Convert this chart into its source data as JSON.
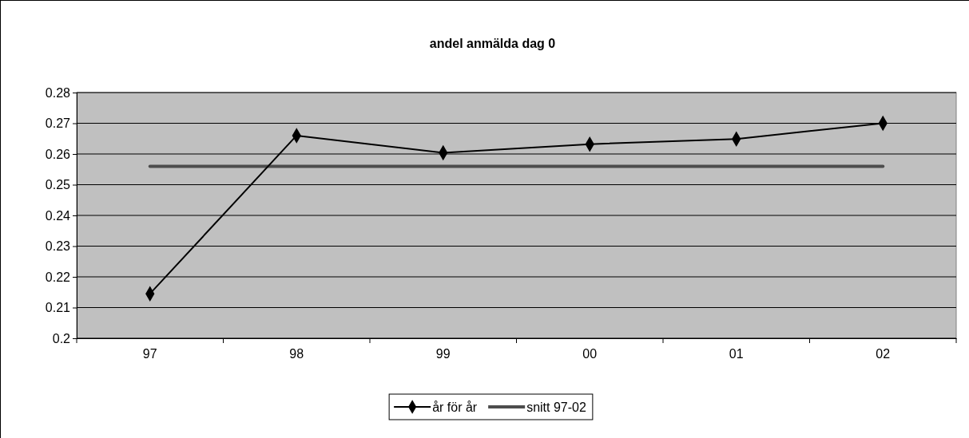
{
  "chart_data": {
    "type": "line",
    "title": "andel anmälda dag 0",
    "categories": [
      "97",
      "98",
      "99",
      "00",
      "01",
      "02"
    ],
    "series": [
      {
        "name": "år för år",
        "color": "#000000",
        "values": [
          0.2145,
          0.266,
          0.2604,
          0.2632,
          0.2649,
          0.27
        ],
        "marker": "diamond"
      },
      {
        "name": "snitt 97-02",
        "color": "#4d4d4d",
        "values": [
          0.256,
          0.256,
          0.256,
          0.256,
          0.256,
          0.256
        ],
        "marker": "none"
      }
    ],
    "ylim": [
      0.2,
      0.28
    ],
    "yticks": [
      0.2,
      0.21,
      0.22,
      0.23,
      0.24,
      0.25,
      0.26,
      0.27,
      0.28
    ],
    "grid": "y",
    "legend": "bottom"
  }
}
